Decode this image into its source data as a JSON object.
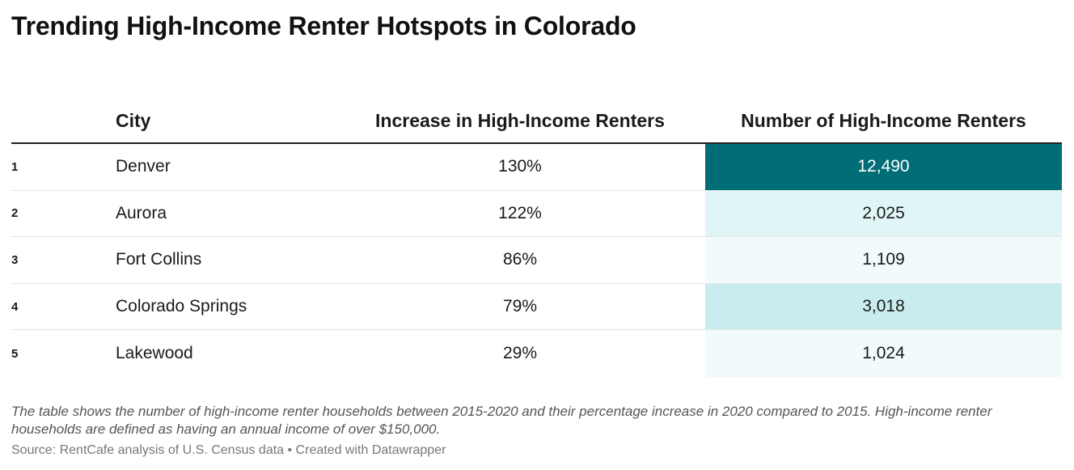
{
  "title": "Trending High-Income Renter Hotspots in Colorado",
  "colors": {
    "heat_dark": "#006d77",
    "heat_light": "#e0f5f6",
    "heat_lighter": "#f1fbfc",
    "heat_mid": "#c9edef"
  },
  "chart_data": {
    "type": "table",
    "columns": [
      "City",
      "Increase in High-Income Renters",
      "Number of High-Income Renters"
    ],
    "rows": [
      {
        "rank": "1",
        "city": "Denver",
        "increase": "130%",
        "number": "12,490",
        "number_value": 12490
      },
      {
        "rank": "2",
        "city": "Aurora",
        "increase": "122%",
        "number": "2,025",
        "number_value": 2025
      },
      {
        "rank": "3",
        "city": "Fort Collins",
        "increase": "86%",
        "number": "1,109",
        "number_value": 1109
      },
      {
        "rank": "4",
        "city": "Colorado Springs",
        "increase": "79%",
        "number": "3,018",
        "number_value": 3018
      },
      {
        "rank": "5",
        "city": "Lakewood",
        "increase": "29%",
        "number": "1,024",
        "number_value": 1024
      }
    ]
  },
  "footnote": "The table shows the number of high-income renter households between 2015-2020 and their percentage increase in 2020 compared to 2015. High-income renter households are defined as having an annual income of over $150,000.",
  "source": "Source: RentCafe analysis of U.S. Census data • Created with Datawrapper"
}
